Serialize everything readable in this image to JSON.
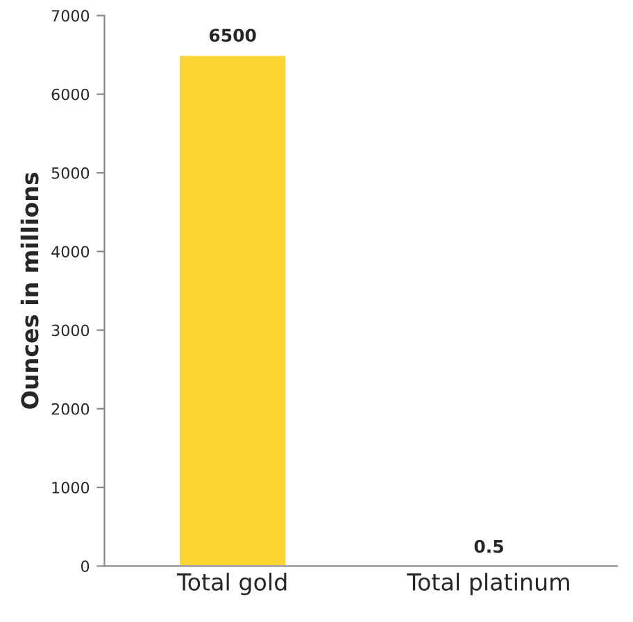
{
  "chart_data": {
    "type": "bar",
    "ylabel": "Ounces in millions",
    "categories": [
      "Total gold",
      "Total platinum"
    ],
    "values": [
      6500,
      0.5
    ],
    "colors": [
      "#fdd533",
      "#e8c020"
    ],
    "ylim": [
      0,
      7000
    ],
    "yticks": [
      0,
      1000,
      2000,
      3000,
      4000,
      5000,
      6000,
      7000
    ],
    "grid": false,
    "data_labels": true
  }
}
